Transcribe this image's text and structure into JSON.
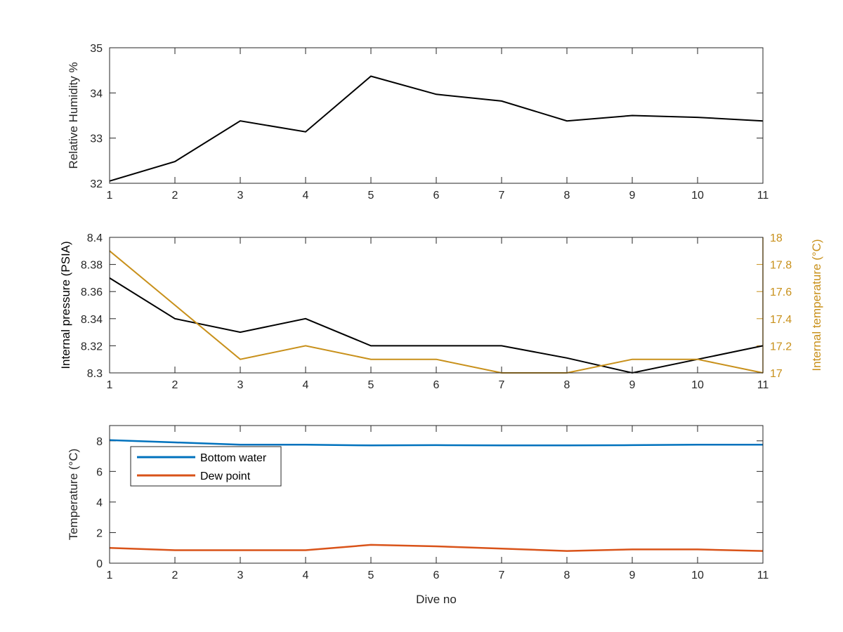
{
  "colors": {
    "black_line": "#000000",
    "temperature_line": "#C8901A",
    "bottom_water": "#0072BD",
    "dew_point": "#D95319",
    "axis": "#262626"
  },
  "chart_data": [
    {
      "type": "line",
      "x": [
        1,
        2,
        3,
        4,
        5,
        6,
        7,
        8,
        9,
        10,
        11
      ],
      "xlim": [
        1,
        11
      ],
      "xticks": [
        "1",
        "2",
        "3",
        "4",
        "5",
        "6",
        "7",
        "8",
        "9",
        "10",
        "11"
      ],
      "ylabel": "Relative Humidity %",
      "ylim": [
        32,
        35
      ],
      "yticks": [
        "32",
        "33",
        "34",
        "35"
      ],
      "series": [
        {
          "values": [
            32.05,
            32.48,
            33.38,
            33.14,
            34.37,
            33.97,
            33.82,
            33.38,
            33.5,
            33.46,
            33.38
          ]
        }
      ]
    },
    {
      "type": "line",
      "x": [
        1,
        2,
        3,
        4,
        5,
        6,
        7,
        8,
        9,
        10,
        11
      ],
      "xlim": [
        1,
        11
      ],
      "xticks": [
        "1",
        "2",
        "3",
        "4",
        "5",
        "6",
        "7",
        "8",
        "9",
        "10",
        "11"
      ],
      "ylabel": "Internal pressure (PSIA)",
      "ylim": [
        8.3,
        8.4
      ],
      "yticks": [
        "8.3",
        "8.32",
        "8.34",
        "8.36",
        "8.38",
        "8.4"
      ],
      "y2label": "Internal temperature (°C)",
      "y2lim": [
        17,
        18
      ],
      "y2ticks": [
        "17",
        "17.2",
        "17.4",
        "17.6",
        "17.8",
        "18"
      ],
      "series": [
        {
          "axis": "left",
          "values": [
            8.37,
            8.34,
            8.33,
            8.34,
            8.32,
            8.32,
            8.32,
            8.311,
            8.3,
            8.31,
            8.32
          ]
        },
        {
          "axis": "right",
          "values": [
            17.9,
            17.5,
            17.1,
            17.2,
            17.1,
            17.1,
            17.0,
            17.0,
            17.1,
            17.1,
            17.0
          ]
        }
      ]
    },
    {
      "type": "line",
      "x": [
        1,
        2,
        3,
        4,
        5,
        6,
        7,
        8,
        9,
        10,
        11
      ],
      "xlim": [
        1,
        11
      ],
      "xticks": [
        "1",
        "2",
        "3",
        "4",
        "5",
        "6",
        "7",
        "8",
        "9",
        "10",
        "11"
      ],
      "xlabel": "Dive no",
      "ylabel": "Temperature (°C)",
      "ylim": [
        0,
        9
      ],
      "yticks": [
        "0",
        "2",
        "4",
        "6",
        "8"
      ],
      "legend": "top-left",
      "series": [
        {
          "name": "Bottom water",
          "values": [
            8.05,
            7.9,
            7.75,
            7.75,
            7.7,
            7.72,
            7.7,
            7.7,
            7.72,
            7.75,
            7.75
          ]
        },
        {
          "name": "Dew point",
          "values": [
            1.0,
            0.85,
            0.85,
            0.85,
            1.2,
            1.1,
            0.95,
            0.8,
            0.9,
            0.9,
            0.8
          ]
        }
      ]
    }
  ]
}
